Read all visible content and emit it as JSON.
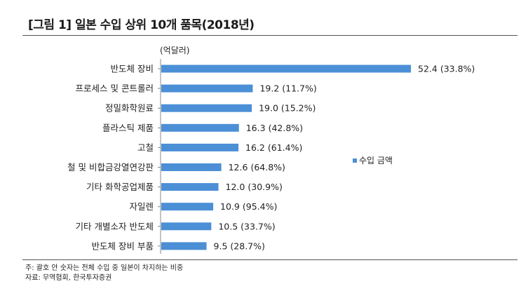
{
  "title": "[그림 1] 일본 수입 상위 10개 품목(2018년)",
  "unit_label": "(억달러)",
  "legend_label": "수입 금액",
  "footnotes": {
    "note": "주: 괄호 안 숫자는 전체 수입 중 일본이 차지하는 비중",
    "source": "자료: 무역협회, 한국투자증권"
  },
  "colors": {
    "bar": "#4b8fd6",
    "axis": "#888888"
  },
  "chart_data": {
    "type": "bar",
    "orientation": "horizontal",
    "title": "[그림 1] 일본 수입 상위 10개 품목(2018년)",
    "unit": "(억달러)",
    "xlim": [
      0,
      60
    ],
    "grid": false,
    "legend": "right",
    "series": [
      {
        "name": "수입 금액",
        "values": [
          52.4,
          19.2,
          19.0,
          16.3,
          16.2,
          12.6,
          12.0,
          10.9,
          10.5,
          9.5
        ]
      }
    ],
    "categories": [
      "반도체 장비",
      "프로세스 및 콘트롤러",
      "정밀화학원료",
      "플라스틱 제품",
      "고철",
      "철 및 비합금강열연강판",
      "기타 화학공업제품",
      "자일렌",
      "기타 개별소자 반도체",
      "반도체 장비 부품"
    ],
    "value_labels": [
      "52.4",
      "19.2",
      "19.0",
      "16.3",
      "16.2",
      "12.6",
      "12.0",
      "10.9",
      "10.5",
      "9.5"
    ],
    "shares": [
      "(33.8%)",
      "(11.7%)",
      "(15.2%)",
      "(42.8%)",
      "(61.4%)",
      "(64.8%)",
      "(30.9%)",
      "(95.4%)",
      "(33.7%)",
      "(28.7%)"
    ]
  }
}
